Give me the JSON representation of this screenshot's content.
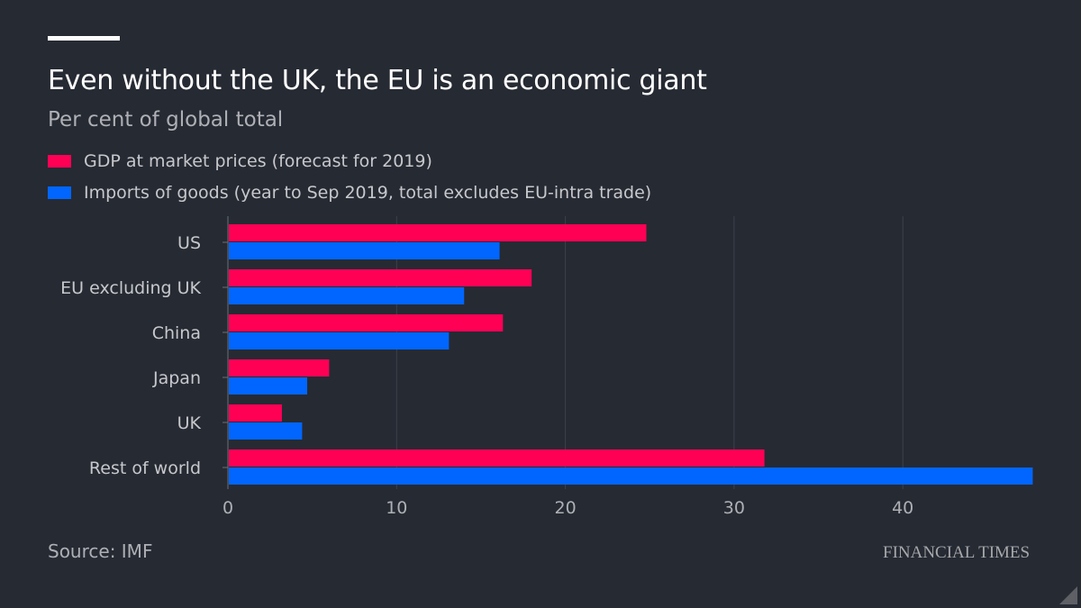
{
  "chart_data": {
    "type": "bar",
    "orientation": "horizontal",
    "title": "Even without the UK, the EU is an economic giant",
    "subtitle": "Per cent of global total",
    "categories": [
      "US",
      "EU excluding UK",
      "China",
      "Japan",
      "UK",
      "Rest of world"
    ],
    "series": [
      {
        "name": "GDP at market prices (forecast for 2019)",
        "color": "#ff0055",
        "values": [
          24.8,
          18.0,
          16.3,
          6.0,
          3.2,
          31.8
        ]
      },
      {
        "name": "Imports of goods (year to Sep 2019, total excludes EU-intra trade)",
        "color": "#0066ff",
        "values": [
          16.1,
          14.0,
          13.1,
          4.7,
          4.4,
          47.7
        ]
      }
    ],
    "xlim": [
      0,
      48
    ],
    "xticks": [
      0,
      10,
      20,
      30,
      40
    ],
    "xlabel": "",
    "ylabel": "",
    "grid": true,
    "legend": "top-left",
    "source": "Source: IMF",
    "brand": "FINANCIAL TIMES"
  }
}
